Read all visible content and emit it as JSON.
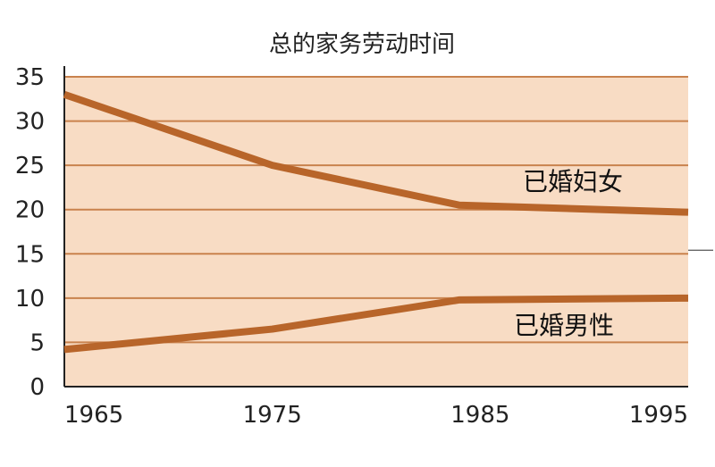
{
  "chart_data": {
    "type": "line",
    "title": "总的家务劳动时间",
    "xlabel": "",
    "ylabel": "",
    "x": [
      1965,
      1975,
      1985,
      1995
    ],
    "xlim": [
      1965,
      1995
    ],
    "ylim": [
      0,
      35
    ],
    "yticks": [
      0,
      5,
      10,
      15,
      20,
      25,
      30,
      35
    ],
    "xticks": [
      1965,
      1975,
      1985,
      1995
    ],
    "grid": true,
    "legend": "none",
    "series": [
      {
        "name": "已婚妇女",
        "points": [
          [
            1965,
            33
          ],
          [
            1975,
            25
          ],
          [
            1984,
            20.5
          ],
          [
            1995,
            19.7
          ]
        ],
        "color": "#b8652a"
      },
      {
        "name": "已婚男性",
        "points": [
          [
            1965,
            4.2
          ],
          [
            1975,
            6.5
          ],
          [
            1984,
            9.8
          ],
          [
            1995,
            10
          ]
        ],
        "color": "#b8652a"
      }
    ],
    "colors": {
      "plot_background": "#f8dcc4",
      "gridline": "#c9824d",
      "axis": "#222222"
    }
  }
}
